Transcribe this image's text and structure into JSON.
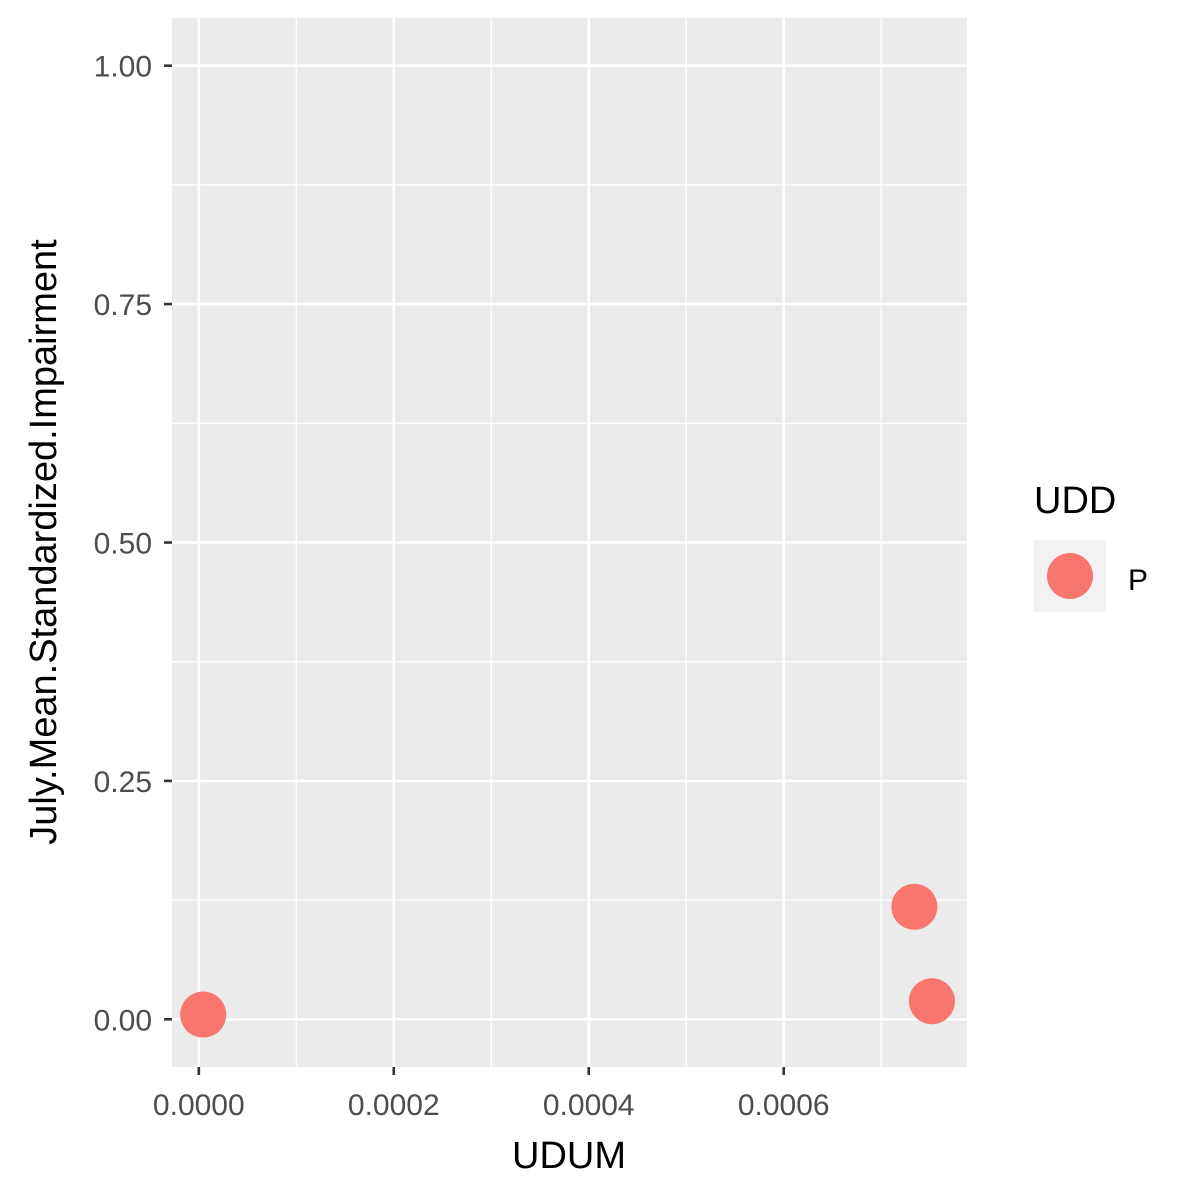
{
  "chart_data": {
    "type": "scatter",
    "title": "",
    "xlabel": "UDUM",
    "ylabel": "July.Mean.Standardized.Impairment",
    "xlim": [
      -2.75e-05,
      0.000788
    ],
    "ylim": [
      -0.05,
      1.05
    ],
    "x_ticks": [
      0,
      0.0002,
      0.0004,
      0.0006
    ],
    "x_tick_labels": [
      "0.0000",
      "0.0002",
      "0.0004",
      "0.0006"
    ],
    "x_minor_ticks": [
      0.0001,
      0.0003,
      0.0005,
      0.0007
    ],
    "y_ticks": [
      0,
      0.25,
      0.5,
      0.75,
      1
    ],
    "y_tick_labels": [
      "0.00",
      "0.25",
      "0.50",
      "0.75",
      "1.00"
    ],
    "y_minor_ticks": [
      0.125,
      0.375,
      0.625,
      0.875
    ],
    "grid": true,
    "legend": {
      "title": "UDD",
      "position": "right",
      "entries": [
        "P"
      ]
    },
    "series": [
      {
        "name": "P",
        "color": "#F8766D",
        "x": [
          4.5e-06,
          0.000734,
          0.000752
        ],
        "y": [
          0.005,
          0.118,
          0.019
        ]
      }
    ]
  }
}
